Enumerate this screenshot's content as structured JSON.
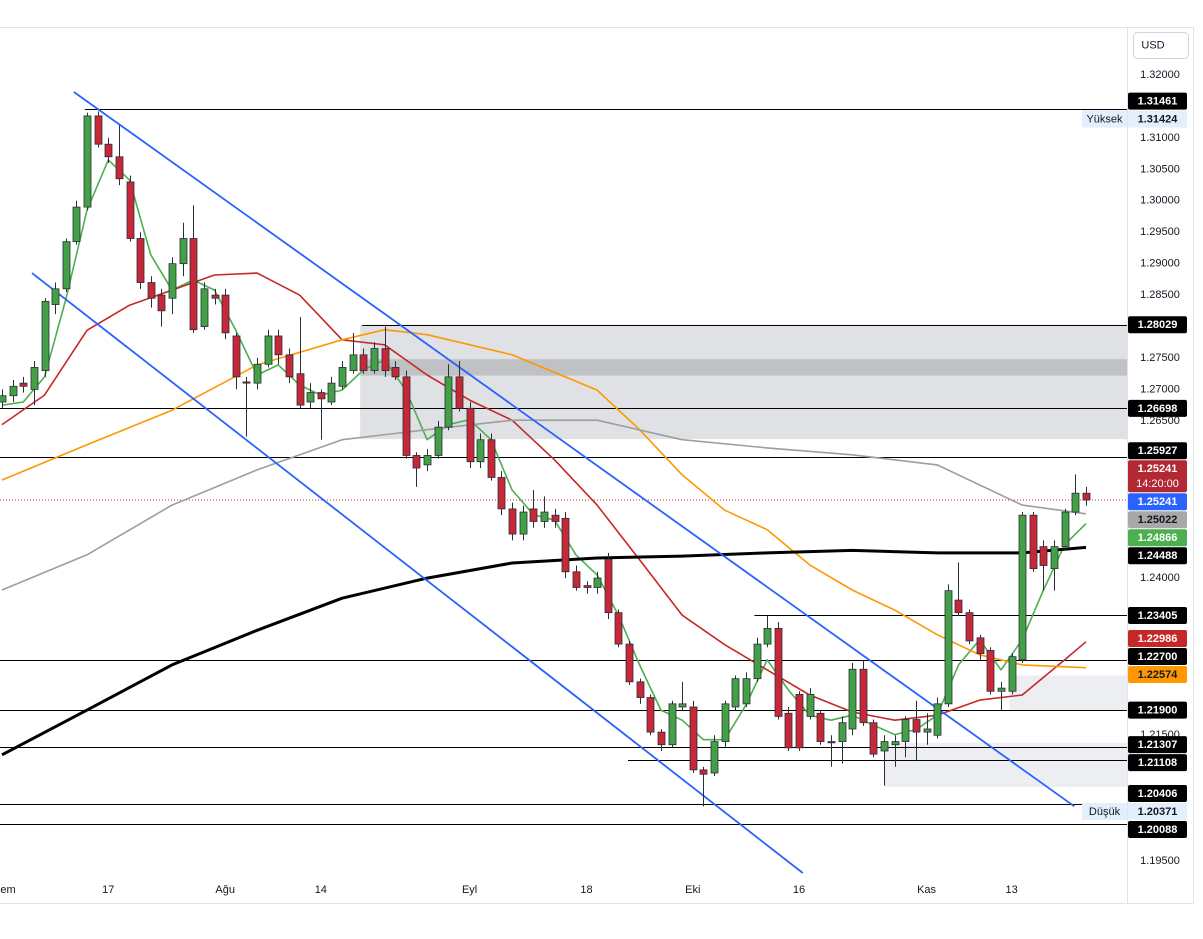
{
  "chart_data": {
    "type": "candlestick",
    "currency": "USD",
    "categories": [
      "em",
      null,
      null,
      null,
      null,
      null,
      null,
      null,
      null,
      null,
      "17",
      null,
      null,
      null,
      null,
      null,
      null,
      null,
      null,
      null,
      null,
      "Ağu",
      null,
      null,
      null,
      null,
      null,
      null,
      null,
      null,
      "14",
      null,
      null,
      null,
      null,
      null,
      null,
      null,
      null,
      null,
      null,
      null,
      null,
      null,
      "Eyl",
      null,
      null,
      null,
      null,
      null,
      null,
      null,
      null,
      null,
      null,
      "18",
      null,
      null,
      null,
      null,
      null,
      null,
      null,
      null,
      null,
      "Eki",
      null,
      null,
      null,
      null,
      null,
      null,
      null,
      null,
      null,
      "16",
      null,
      null,
      null,
      null,
      null,
      null,
      null,
      null,
      null,
      null,
      null,
      "Kas",
      null,
      null,
      null,
      null,
      null,
      null,
      null,
      "13",
      null,
      null,
      null,
      null,
      null,
      null,
      null
    ],
    "open": [
      1.268,
      1.269,
      1.271,
      1.27,
      1.273,
      1.2835,
      1.286,
      1.2935,
      1.299,
      1.3135,
      1.309,
      1.307,
      1.303,
      1.294,
      1.287,
      1.285,
      1.2845,
      1.29,
      1.294,
      1.28,
      1.285,
      1.285,
      1.2785,
      1.2712,
      1.271,
      1.274,
      1.2785,
      1.2755,
      1.2725,
      1.268,
      1.2695,
      1.268,
      1.2705,
      1.273,
      1.2755,
      1.273,
      1.2765,
      1.2735,
      1.272,
      1.2595,
      1.258,
      1.2595,
      1.264,
      1.272,
      1.267,
      1.2585,
      1.262,
      1.256,
      1.251,
      1.247,
      1.251,
      1.249,
      1.25,
      1.2495,
      1.241,
      1.2388,
      1.2385,
      1.243,
      1.2345,
      1.2295,
      1.2235,
      1.221,
      1.2155,
      1.2135,
      1.2195,
      1.2195,
      1.2095,
      1.209,
      1.214,
      1.2195,
      1.22,
      1.224,
      1.2295,
      1.232,
      1.2185,
      1.2215,
      1.218,
      1.2185,
      1.214,
      1.214,
      1.216,
      1.2255,
      1.217,
      1.2125,
      1.2135,
      1.214,
      1.2175,
      1.2155,
      1.215,
      1.22,
      1.2365,
      1.2345,
      1.2305,
      1.2285,
      1.222,
      1.222,
      1.227,
      1.25,
      1.245,
      1.2415,
      1.245,
      1.2505,
      1.2535
    ],
    "high": [
      1.27,
      1.2715,
      1.272,
      1.2745,
      1.2845,
      1.287,
      1.294,
      1.3,
      1.314,
      1.3142,
      1.31,
      1.312,
      1.304,
      1.295,
      1.288,
      1.286,
      1.291,
      1.2965,
      1.2993,
      1.287,
      1.286,
      1.286,
      1.279,
      1.272,
      1.275,
      1.2795,
      1.2795,
      1.2765,
      1.2815,
      1.271,
      1.27,
      1.272,
      1.2745,
      1.279,
      1.2765,
      1.2775,
      1.28,
      1.2745,
      1.273,
      1.26,
      1.2605,
      1.265,
      1.274,
      1.2745,
      1.268,
      1.263,
      1.263,
      1.257,
      1.252,
      1.2515,
      1.254,
      1.253,
      1.251,
      1.2505,
      1.242,
      1.2395,
      1.241,
      1.244,
      1.235,
      1.23,
      1.224,
      1.2215,
      1.216,
      1.2205,
      1.2235,
      1.2205,
      1.21,
      1.215,
      1.2205,
      1.2245,
      1.225,
      1.2305,
      1.234,
      1.233,
      1.2195,
      1.222,
      1.2225,
      1.219,
      1.215,
      1.218,
      1.2265,
      1.227,
      1.2175,
      1.215,
      1.215,
      1.218,
      1.2205,
      1.2185,
      1.221,
      1.239,
      1.2425,
      1.235,
      1.231,
      1.229,
      1.2235,
      1.228,
      1.2505,
      1.2505,
      1.246,
      1.246,
      1.251,
      1.2565,
      1.2545
    ],
    "low": [
      1.267,
      1.268,
      1.2695,
      1.2675,
      1.272,
      1.282,
      1.2855,
      1.293,
      1.2985,
      1.3085,
      1.306,
      1.3025,
      1.2935,
      1.286,
      1.283,
      1.28,
      1.282,
      1.288,
      1.279,
      1.2795,
      1.2835,
      1.278,
      1.27,
      1.2625,
      1.27,
      1.2735,
      1.274,
      1.271,
      1.267,
      1.267,
      1.262,
      1.2675,
      1.27,
      1.2725,
      1.2725,
      1.2725,
      1.272,
      1.2715,
      1.259,
      1.2545,
      1.257,
      1.259,
      1.2635,
      1.2665,
      1.2575,
      1.2575,
      1.2555,
      1.25,
      1.246,
      1.246,
      1.248,
      1.248,
      1.248,
      1.24,
      1.238,
      1.2375,
      1.2375,
      1.2335,
      1.229,
      1.223,
      1.22,
      1.215,
      1.2125,
      1.213,
      1.219,
      1.209,
      1.2037,
      1.2085,
      1.213,
      1.219,
      1.2195,
      1.2235,
      1.229,
      1.2175,
      1.2125,
      1.2125,
      1.2175,
      1.2135,
      1.21,
      1.2105,
      1.215,
      1.2165,
      1.2115,
      1.207,
      1.21,
      1.2115,
      1.211,
      1.2135,
      1.2145,
      1.2195,
      1.234,
      1.2295,
      1.227,
      1.2215,
      1.219,
      1.2215,
      1.2265,
      1.241,
      1.238,
      1.238,
      1.2445,
      1.25,
      1.2515
    ],
    "close": [
      1.269,
      1.2705,
      1.2705,
      1.2735,
      1.284,
      1.286,
      1.2935,
      1.299,
      1.3135,
      1.309,
      1.307,
      1.3035,
      1.294,
      1.287,
      1.2845,
      1.2825,
      1.29,
      1.294,
      1.2795,
      1.286,
      1.2845,
      1.279,
      1.272,
      1.271,
      1.274,
      1.2785,
      1.2755,
      1.272,
      1.2675,
      1.2695,
      1.2685,
      1.271,
      1.2735,
      1.2755,
      1.273,
      1.2765,
      1.273,
      1.272,
      1.2595,
      1.2575,
      1.2595,
      1.264,
      1.272,
      1.267,
      1.2585,
      1.262,
      1.256,
      1.251,
      1.247,
      1.2505,
      1.249,
      1.2505,
      1.249,
      1.241,
      1.2385,
      1.2385,
      1.24,
      1.2345,
      1.2295,
      1.2235,
      1.221,
      1.2155,
      1.2135,
      1.22,
      1.22,
      1.2095,
      1.2088,
      1.214,
      1.22,
      1.224,
      1.224,
      1.2295,
      1.232,
      1.218,
      1.213,
      1.213,
      1.2215,
      1.214,
      1.2138,
      1.217,
      1.2255,
      1.217,
      1.212,
      1.214,
      1.214,
      1.2175,
      1.2155,
      1.216,
      1.22,
      1.238,
      1.2345,
      1.23,
      1.228,
      1.222,
      1.2225,
      1.2275,
      1.25,
      1.2415,
      1.242,
      1.245,
      1.2505,
      1.2535,
      1.25241
    ],
    "up_color": "#43a047",
    "down_color": "#c62838",
    "ylim": [
      1.19278,
      1.32716
    ],
    "yticks": [
      {
        "value": 1.32,
        "label": "1.32000"
      },
      {
        "value": 1.31,
        "label": "1.31000"
      },
      {
        "value": 1.305,
        "label": "1.30500"
      },
      {
        "value": 1.3,
        "label": "1.30000"
      },
      {
        "value": 1.295,
        "label": "1.29500"
      },
      {
        "value": 1.29,
        "label": "1.29000"
      },
      {
        "value": 1.285,
        "label": "1.28500"
      },
      {
        "value": 1.275,
        "label": "1.27500"
      },
      {
        "value": 1.27,
        "label": "1.27000"
      },
      {
        "value": 1.265,
        "label": "1.26500"
      },
      {
        "value": 1.24,
        "label": "1.24000"
      },
      {
        "value": 1.215,
        "label": "1.21500"
      },
      {
        "value": 1.195,
        "label": "1.19500"
      }
    ],
    "zones": [
      {
        "from": 1.28029,
        "to": 1.2621,
        "start": 33.7,
        "color": "#dfe1e5"
      },
      {
        "from": 1.2748,
        "to": 1.2722,
        "start": 33.7,
        "color": "#bfc1c5"
      },
      {
        "from": 1.2245,
        "to": 1.219,
        "start": 94.8,
        "color": "#eceef1"
      },
      {
        "from": 1.2138,
        "to": 1.2068,
        "start": 83,
        "color": "#eceef1"
      }
    ],
    "levels": [
      {
        "value": 1.31461,
        "start": 7.8
      },
      {
        "value": 1.28029,
        "start": 33.9
      },
      {
        "value": 1.26698
      },
      {
        "value": 1.25927
      },
      {
        "value": 1.23405,
        "start": 70.8
      },
      {
        "value": 1.227
      },
      {
        "value": 1.219
      },
      {
        "value": 1.21307
      },
      {
        "value": 1.21108,
        "start": 58.9
      },
      {
        "value": 1.20406
      },
      {
        "value": 1.20088
      }
    ],
    "trendlines": [
      {
        "color": "#2962ff",
        "x": [
          6.77,
          100.9
        ],
        "values": [
          1.3173,
          1.2037
        ]
      },
      {
        "color": "#2962ff",
        "x": [
          2.82,
          75.35
        ],
        "values": [
          1.2885,
          1.1931
        ]
      }
    ],
    "moving_averages": [
      {
        "color": "#4caf50",
        "x": [
          0,
          2,
          4,
          6,
          8,
          10,
          12,
          14,
          16,
          18,
          20,
          22,
          24,
          26,
          28,
          30,
          32,
          34,
          36,
          38,
          40,
          42,
          44,
          46,
          48,
          50,
          52,
          54,
          56,
          58,
          60,
          62,
          64,
          66,
          68,
          70,
          72,
          74,
          76,
          78,
          80,
          82,
          84,
          86,
          88,
          90,
          92,
          94,
          96,
          98,
          100,
          102
        ],
        "values": [
          1.2675,
          1.268,
          1.272,
          1.2843,
          1.2985,
          1.3065,
          1.3033,
          1.2914,
          1.2858,
          1.2874,
          1.2858,
          1.2794,
          1.2723,
          1.2739,
          1.2707,
          1.2691,
          1.2699,
          1.2731,
          1.2747,
          1.2699,
          1.262,
          1.2644,
          1.2652,
          1.262,
          1.254,
          1.2501,
          1.2492,
          1.2437,
          1.2405,
          1.2341,
          1.2262,
          1.219,
          1.2174,
          1.2143,
          1.2143,
          1.2198,
          1.227,
          1.2222,
          1.2182,
          1.2174,
          1.2182,
          1.2166,
          1.2151,
          1.2159,
          1.2182,
          1.2262,
          1.2302,
          1.2254,
          1.2302,
          1.2381,
          1.2453,
          1.24866
        ]
      },
      {
        "color": "#c62828",
        "x": [
          0,
          4,
          8,
          12,
          16,
          20,
          24,
          28,
          32,
          36,
          40,
          44,
          48,
          52,
          56,
          60,
          64,
          68,
          72,
          76,
          80,
          84,
          88,
          92,
          96,
          100,
          102
        ],
        "values": [
          1.2644,
          1.2691,
          1.2794,
          1.2834,
          1.2858,
          1.2882,
          1.2885,
          1.285,
          1.2779,
          1.2771,
          1.2723,
          1.2683,
          1.2651,
          1.2588,
          1.2516,
          1.2429,
          1.2341,
          1.2294,
          1.2254,
          1.2214,
          1.2187,
          1.2174,
          1.2182,
          1.2206,
          1.2214,
          1.227,
          1.22986
        ]
      },
      {
        "color": "#ff9800",
        "x": [
          0,
          8,
          16,
          24,
          32,
          36,
          40,
          48,
          56,
          60,
          64,
          68,
          72,
          76,
          80,
          84,
          88,
          92,
          96,
          102
        ],
        "values": [
          1.2556,
          1.2612,
          1.2667,
          1.2739,
          1.2779,
          1.2795,
          1.2787,
          1.2755,
          1.2699,
          1.2636,
          1.2564,
          1.2508,
          1.2477,
          1.2421,
          1.2381,
          1.2349,
          1.231,
          1.2278,
          1.2262,
          1.22574
        ]
      },
      {
        "color": "#9e9e9e",
        "x": [
          0,
          8,
          16,
          24,
          32,
          40,
          48,
          56,
          64,
          72,
          80,
          88,
          96,
          102
        ],
        "values": [
          1.2381,
          1.2437,
          1.2516,
          1.2572,
          1.262,
          1.2636,
          1.2651,
          1.2651,
          1.262,
          1.2607,
          1.2596,
          1.258,
          1.2516,
          1.25022
        ]
      },
      {
        "color": "#000000",
        "x": [
          0,
          8,
          16,
          24,
          32,
          40,
          48,
          56,
          64,
          72,
          80,
          88,
          96,
          102
        ],
        "values": [
          1.2119,
          1.219,
          1.2262,
          1.2317,
          1.2368,
          1.24,
          1.2424,
          1.2432,
          1.2435,
          1.244,
          1.2444,
          1.244,
          1.244,
          1.24488
        ]
      }
    ],
    "price_line": {
      "value": 1.25241,
      "color": "#c62838"
    },
    "price_labels": [
      {
        "value": 1.31461,
        "label": "1.31461",
        "color": "#000000",
        "text_color": "#ffffff"
      },
      {
        "value": 1.31424,
        "label": "1.31424",
        "color": "#e3effd",
        "text_color": "#131722",
        "tag": "Yüksek"
      },
      {
        "value": 1.28029,
        "label": "1.28029",
        "color": "#000000",
        "text_color": "#ffffff"
      },
      {
        "value": 1.26698,
        "label": "1.26698",
        "color": "#000000",
        "text_color": "#ffffff"
      },
      {
        "value": 1.25927,
        "label": "1.25927",
        "color": "#000000",
        "text_color": "#ffffff"
      },
      {
        "value": 1.25241,
        "label": "1.25241",
        "color": "#b22833",
        "text_color": "#ffffff",
        "countdown": "14:20:00"
      },
      {
        "value": 1.25241,
        "label": "1.25241",
        "color": "#2962ff",
        "text_color": "#ffffff"
      },
      {
        "value": 1.25022,
        "label": "1.25022",
        "color": "#a8a8a8",
        "text_color": "#131722"
      },
      {
        "value": 1.24866,
        "label": "1.24866",
        "color": "#4caf50",
        "text_color": "#ffffff"
      },
      {
        "value": 1.24488,
        "label": "1.24488",
        "color": "#000000",
        "text_color": "#ffffff"
      },
      {
        "value": 1.23405,
        "label": "1.23405",
        "color": "#000000",
        "text_color": "#ffffff"
      },
      {
        "value": 1.22986,
        "label": "1.22986",
        "color": "#c62828",
        "text_color": "#ffffff"
      },
      {
        "value": 1.227,
        "label": "1.22700",
        "color": "#000000",
        "text_color": "#ffffff"
      },
      {
        "value": 1.22574,
        "label": "1.22574",
        "color": "#ff9800",
        "text_color": "#131722"
      },
      {
        "value": 1.219,
        "label": "1.21900",
        "color": "#000000",
        "text_color": "#ffffff"
      },
      {
        "value": 1.21307,
        "label": "1.21307",
        "color": "#000000",
        "text_color": "#ffffff"
      },
      {
        "value": 1.21108,
        "label": "1.21108",
        "color": "#000000",
        "text_color": "#ffffff"
      },
      {
        "value": 1.20406,
        "label": "1.20406",
        "color": "#000000",
        "text_color": "#ffffff"
      },
      {
        "value": 1.20371,
        "label": "1.20371",
        "color": "#e3effd",
        "text_color": "#131722",
        "tag": "Düşük"
      },
      {
        "value": 1.20088,
        "label": "1.20088",
        "color": "#000000",
        "text_color": "#ffffff"
      }
    ]
  }
}
